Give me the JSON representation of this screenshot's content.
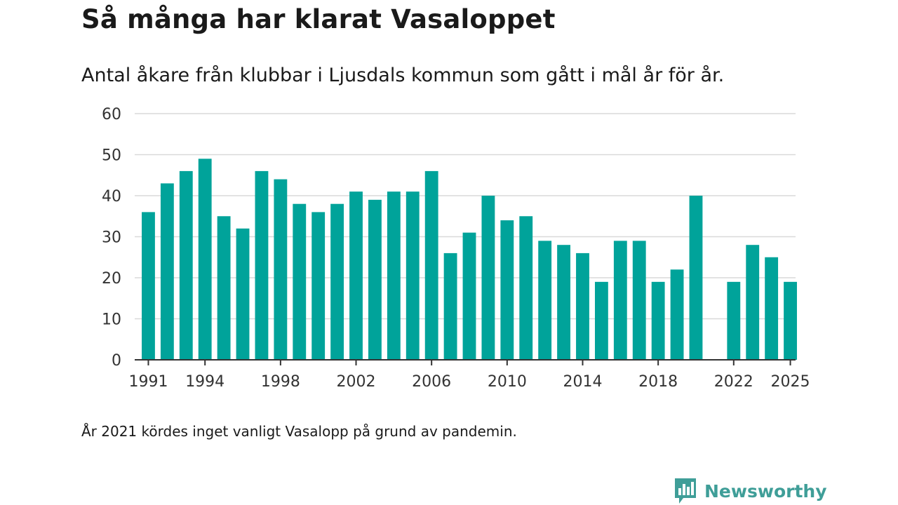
{
  "title": "Så många har klarat Vasaloppet",
  "subtitle": "Antal åkare från klubbar i Ljusdals kommun som gått i mål år för år.",
  "footnote": "År 2021 kördes inget vanligt Vasalopp på grund av pandemin.",
  "brand": {
    "name": "Newsworthy",
    "color": "#3f9e98"
  },
  "colors": {
    "bar": "#00a39a",
    "grid": "#d9d9d9",
    "axis": "#333333",
    "text": "#333333"
  },
  "chart_data": {
    "type": "bar",
    "title": "Så många har klarat Vasaloppet",
    "xlabel": "",
    "ylabel": "",
    "ylim": [
      0,
      60
    ],
    "yticks": [
      0,
      10,
      20,
      30,
      40,
      50,
      60
    ],
    "xticks": [
      "1991",
      "1994",
      "1998",
      "2002",
      "2006",
      "2010",
      "2014",
      "2018",
      "2022",
      "2025"
    ],
    "grid": true,
    "categories": [
      "1991",
      "1992",
      "1993",
      "1994",
      "1995",
      "1996",
      "1997",
      "1998",
      "1999",
      "2000",
      "2001",
      "2002",
      "2003",
      "2004",
      "2005",
      "2006",
      "2007",
      "2008",
      "2009",
      "2010",
      "2011",
      "2012",
      "2013",
      "2014",
      "2015",
      "2016",
      "2017",
      "2018",
      "2019",
      "2020",
      "2021",
      "2022",
      "2023",
      "2024",
      "2025"
    ],
    "values": [
      36,
      43,
      46,
      49,
      35,
      32,
      46,
      44,
      38,
      36,
      38,
      41,
      39,
      41,
      41,
      46,
      26,
      31,
      40,
      34,
      35,
      29,
      28,
      26,
      19,
      29,
      29,
      19,
      22,
      40,
      null,
      19,
      28,
      25,
      19
    ]
  }
}
